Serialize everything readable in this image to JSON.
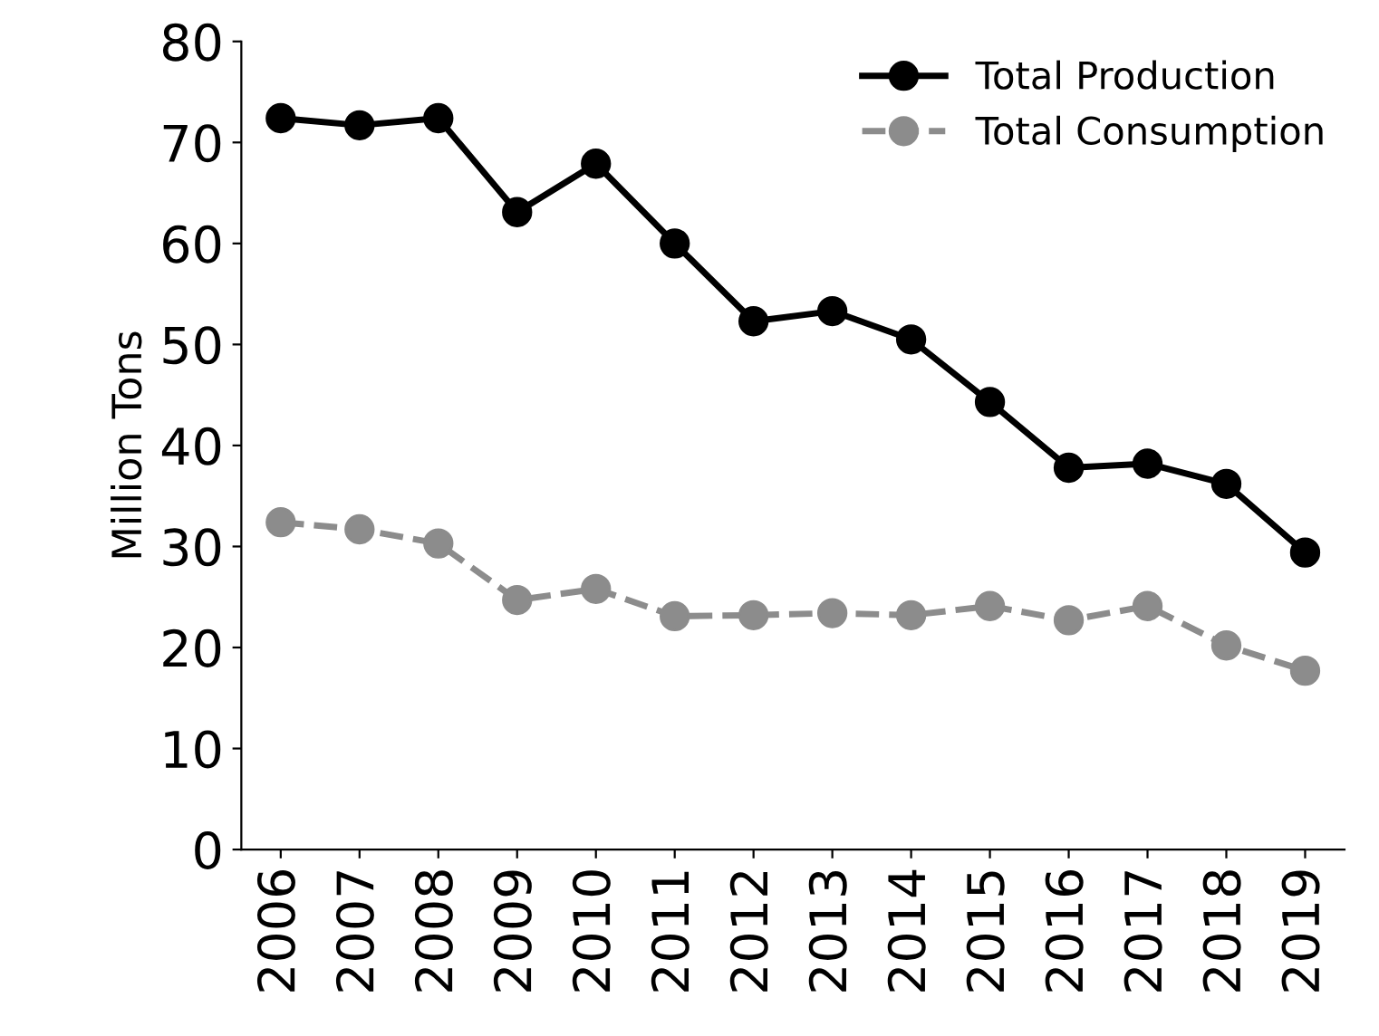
{
  "chart_data": {
    "type": "line",
    "ylabel": "Million Tons",
    "categories": [
      "2006",
      "2007",
      "2008",
      "2009",
      "2010",
      "2011",
      "2012",
      "2013",
      "2014",
      "2015",
      "2016",
      "2017",
      "2018",
      "2019"
    ],
    "series": [
      {
        "name": "Total Production",
        "color": "#000000",
        "line_style": "solid",
        "values": [
          72.4,
          71.7,
          72.4,
          63.1,
          67.9,
          60.0,
          52.3,
          53.3,
          50.5,
          44.3,
          37.8,
          38.2,
          36.2,
          29.4
        ]
      },
      {
        "name": "Total Consumption",
        "color": "#8c8c8c",
        "line_style": "dashed",
        "values": [
          32.4,
          31.7,
          30.3,
          24.7,
          25.8,
          23.1,
          23.2,
          23.4,
          23.2,
          24.1,
          22.7,
          24.1,
          20.2,
          17.7
        ]
      }
    ],
    "ylim": [
      0,
      80
    ],
    "yticks": [
      0,
      10,
      20,
      30,
      40,
      50,
      60,
      70,
      80
    ],
    "grid": false,
    "legend": "top right",
    "marker": "circle"
  }
}
